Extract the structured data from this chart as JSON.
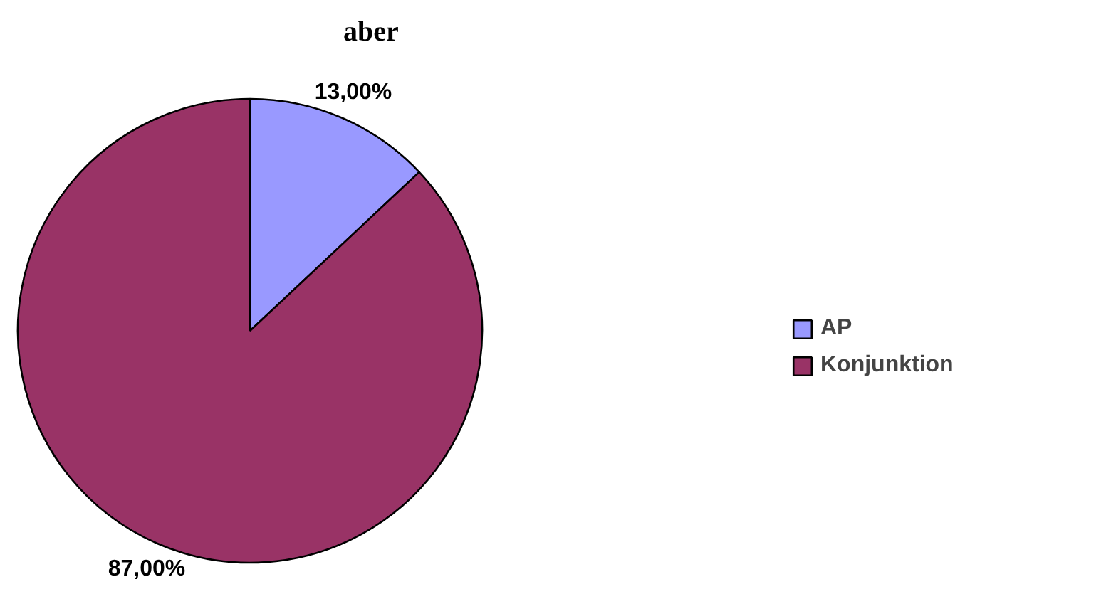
{
  "chart_data": {
    "type": "pie",
    "title": "aber",
    "categories": [
      "AP",
      "Konjunktion"
    ],
    "values": [
      13,
      87
    ],
    "value_labels": [
      "13,00%",
      "87,00%"
    ],
    "colors": [
      "#9999ff",
      "#993366"
    ],
    "legend": "right"
  }
}
